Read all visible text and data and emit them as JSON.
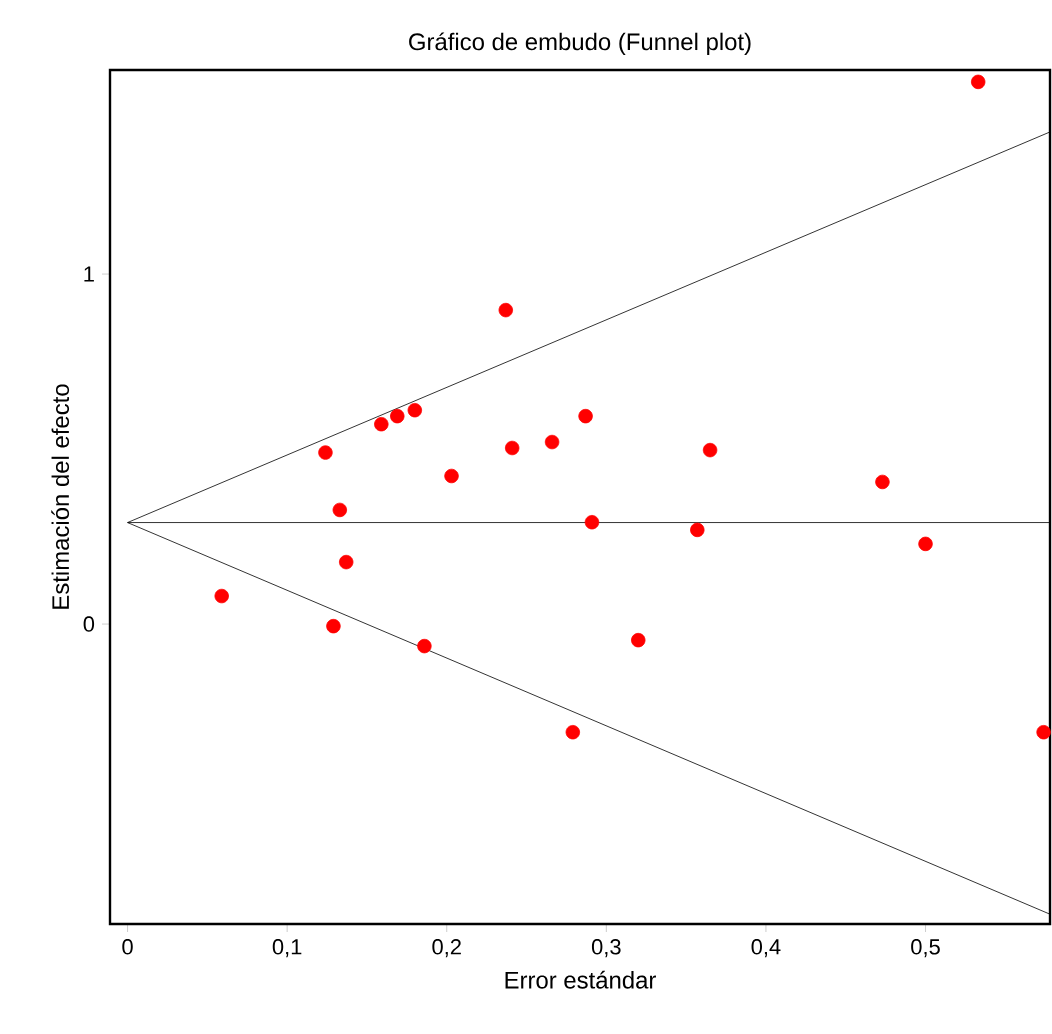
{
  "chart_data": {
    "type": "scatter",
    "title": "Gráfico de embudo (Funnel plot)",
    "xlabel": "Error estándar",
    "ylabel": "Estimación del efecto",
    "xlim": [
      -0.011,
      0.578
    ],
    "ylim": [
      -0.857,
      1.583
    ],
    "xticks": [
      0,
      {
        "value": 0.1,
        "label": "0,1"
      },
      {
        "value": 0.2,
        "label": "0,2"
      },
      {
        "value": 0.3,
        "label": "0,3"
      },
      {
        "value": 0.4,
        "label": "0,4"
      },
      {
        "value": 0.5,
        "label": "0,5"
      }
    ],
    "yticks": [
      0,
      1
    ],
    "grid": false,
    "series": [
      {
        "type": "line",
        "color": "#000000",
        "marker": "none",
        "x": [
          0,
          0.578
        ],
        "values": [
          0.29,
          1.406
        ]
      },
      {
        "type": "line",
        "color": "#000000",
        "marker": "none",
        "x": [
          0,
          0.578
        ],
        "values": [
          0.29,
          0.29
        ]
      },
      {
        "type": "line",
        "color": "#000000",
        "marker": "none",
        "x": [
          0,
          0.578
        ],
        "values": [
          0.29,
          -0.829
        ]
      },
      {
        "color": "#ff0000",
        "marker": "circle",
        "x": [
          0.124,
          0.159,
          0.169,
          0.18,
          0.237,
          0.203,
          0.241,
          0.266,
          0.287,
          0.291,
          0.133,
          0.137,
          0.059,
          0.129,
          0.186,
          0.32,
          0.279,
          0.357,
          0.365,
          0.473,
          0.5,
          0.533,
          0.574
        ],
        "values": [
          0.49,
          0.571,
          0.594,
          0.611,
          0.897,
          0.423,
          0.503,
          0.52,
          0.594,
          0.291,
          0.326,
          0.177,
          0.08,
          -0.006,
          -0.063,
          -0.046,
          -0.309,
          0.269,
          0.497,
          0.406,
          0.229,
          1.549,
          -0.309
        ]
      }
    ]
  }
}
